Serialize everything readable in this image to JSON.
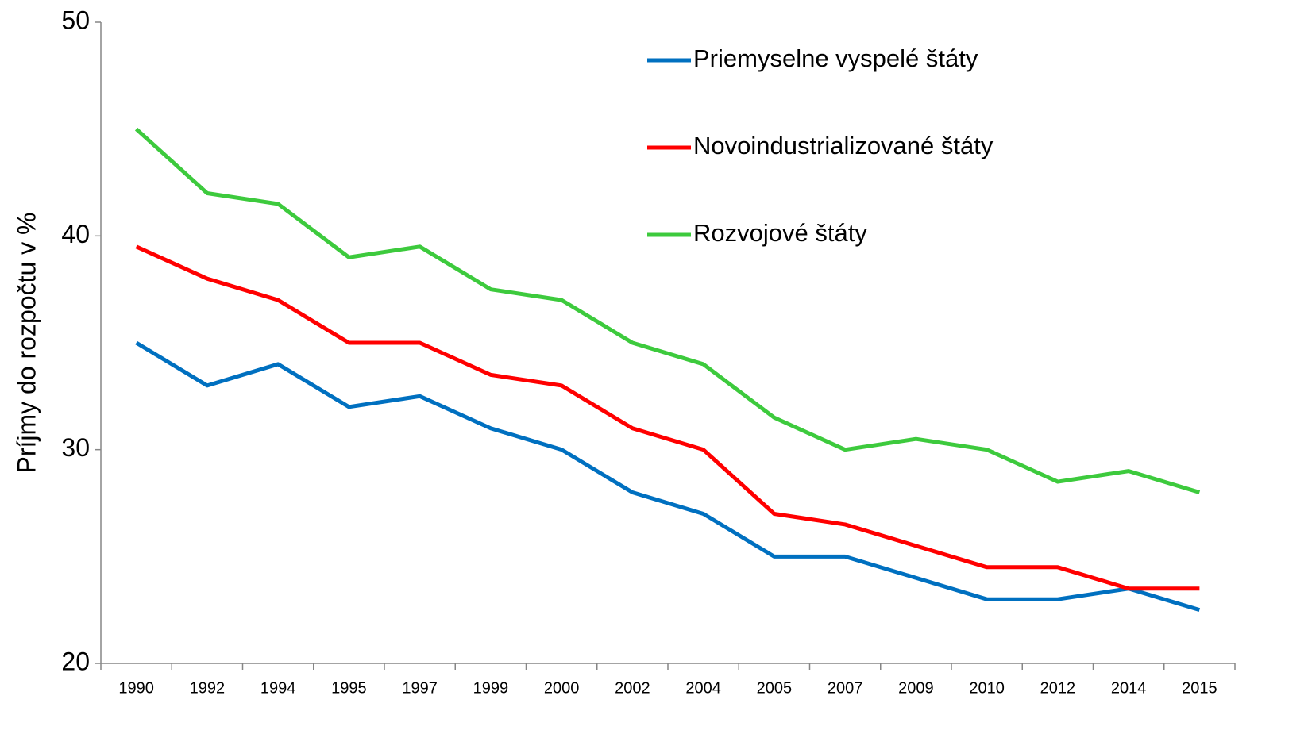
{
  "chart_data": {
    "type": "line",
    "y_label": "Príjmy do rozpočtu v %",
    "categories": [
      "1990",
      "1992",
      "1994",
      "1995",
      "1997",
      "1999",
      "2000",
      "2002",
      "2004",
      "2005",
      "2007",
      "2009",
      "2010",
      "2012",
      "2014",
      "2015"
    ],
    "series": [
      {
        "name": "Priemyselne vyspelé štáty",
        "color": "#0070c0",
        "values": [
          35,
          33,
          34,
          32,
          32.5,
          31,
          30,
          28,
          27,
          25,
          25,
          24,
          23,
          23,
          23.5,
          22.5
        ]
      },
      {
        "name": "Novoindustrializované štáty",
        "color": "#ff0000",
        "values": [
          39.5,
          38,
          37,
          35,
          35,
          33.5,
          33,
          31,
          30,
          27,
          26.5,
          25.5,
          24.5,
          24.5,
          23.5,
          23.5
        ]
      },
      {
        "name": "Rozvojové štáty",
        "color": "#3dca3d",
        "values": [
          45,
          42,
          41.5,
          39,
          39.5,
          37.5,
          37,
          35,
          34,
          31.5,
          30,
          30.5,
          30,
          28.5,
          29,
          28
        ]
      }
    ],
    "ylim": [
      20,
      50
    ],
    "yticks": [
      20,
      30,
      40,
      50
    ],
    "grid": false,
    "legend": "top-right"
  }
}
